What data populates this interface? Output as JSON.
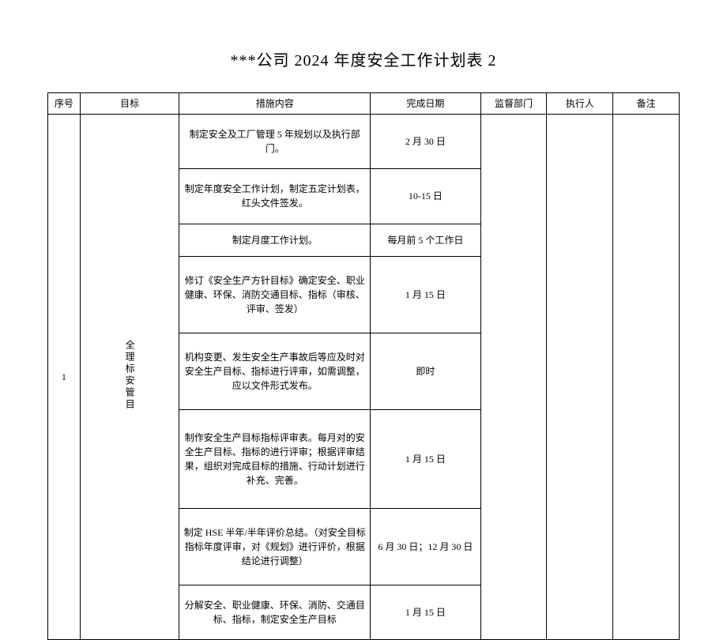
{
  "title": "***公司 2024 年度安全工作计划表 2",
  "headers": {
    "seq": "序号",
    "goal": "目标",
    "measure": "措施内容",
    "date": "完成日期",
    "dept": "监督部门",
    "exec": "执行人",
    "note": "备注"
  },
  "seq_value": "1",
  "goal_value": "全理标安管目",
  "rows": [
    {
      "measure": "制定安全及工厂管理 5 年规划以及执行部门。",
      "date": "2 月 30 日"
    },
    {
      "measure": "制定年度安全工作计划，制定五定计划表，红头文件签发。",
      "date": "10-15 日"
    },
    {
      "measure": "制定月度工作计划。",
      "date": "每月前 5 个工作日"
    },
    {
      "measure": "修订《安全生产方针目标》确定安全、职业健康、环保、消防交通目标、指标（审核、评审、签发）",
      "date": "1 月 15 日"
    },
    {
      "measure": "机构变更、发生安全生产事故后等应及时对安全生产目标、指标进行评审，如需调整，应以文件形式发布。",
      "date": "即时"
    },
    {
      "measure": "制作安全生产目标指标评审表。每月对的安全生产目标、指标的进行评审；根据评审结果，组织对完成目标的措施、行动计划进行补充、完善。",
      "date": "1 月 15 日"
    },
    {
      "measure": "制定 HSE 半年/半年评价总结。（对安全目标指标年度评审，对《规划》进行评价，根据结论进行调整）",
      "date": "6 月 30 日；12 月 30 日"
    },
    {
      "measure": "分解安全、职业健康、环保、消防、交通目标、指标，制定安全生产目标",
      "date": "1 月 15 日"
    }
  ]
}
